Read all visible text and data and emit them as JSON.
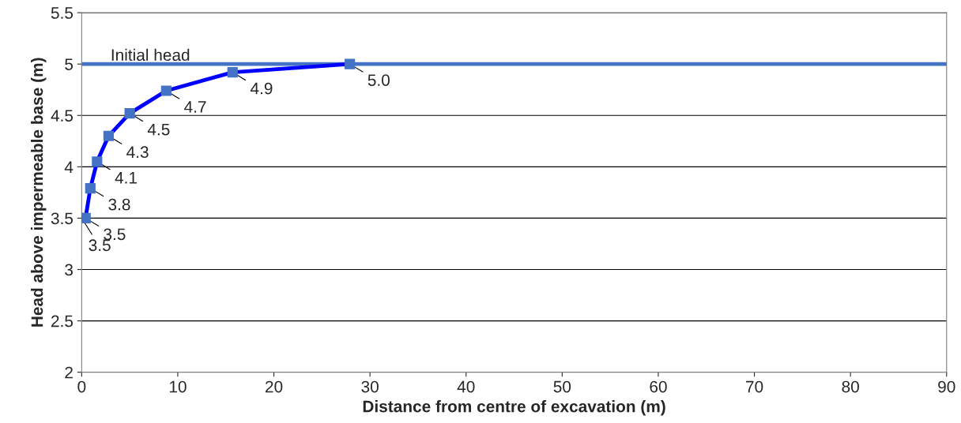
{
  "chart_data": {
    "type": "line",
    "xlabel": "Distance from centre of excavation (m)",
    "ylabel": "Head above impermeable base (m)",
    "xlim": [
      0,
      90
    ],
    "xticks": [
      0,
      10,
      20,
      30,
      40,
      50,
      60,
      70,
      80,
      90
    ],
    "ylim": [
      2,
      5.5
    ],
    "yticks": [
      2,
      2.5,
      3,
      3.5,
      4,
      4.5,
      5,
      5.5
    ],
    "grid": "y",
    "legend": false,
    "series": [
      {
        "name": "Initial head",
        "color": "#4472c4",
        "x": [
          0,
          90
        ],
        "values": [
          5,
          5
        ],
        "marker": "none"
      },
      {
        "color": "#0000ff",
        "x": [
          0,
          0.4,
          0.9,
          1.6,
          2.8,
          5.0,
          8.8,
          15.7,
          27.9
        ],
        "values": [
          3.5,
          3.5,
          3.79,
          4.05,
          4.3,
          4.52,
          4.74,
          4.92,
          5.0
        ],
        "marker": "square",
        "colors": [
          "#4472c4",
          "#4472c4",
          "#4472c4",
          "#4472c4",
          "#4472c4",
          "#4472c4",
          "#4472c4",
          "#4472c4",
          "#4472c4"
        ],
        "value_labels": [
          "3.5",
          "3.5",
          "3.8",
          "4.1",
          "4.3",
          "4.5",
          "4.7",
          "4.9",
          "5.0"
        ]
      }
    ]
  }
}
